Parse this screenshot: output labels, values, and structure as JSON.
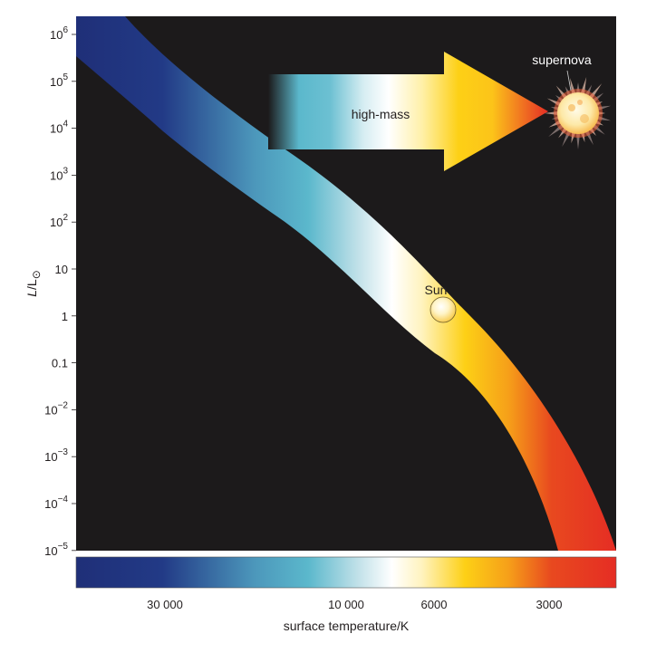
{
  "diagram": {
    "y_axis": {
      "label_italic": "L",
      "label_rest": "/L",
      "label_sub": "⊙",
      "ticks": [
        {
          "base": "10",
          "exp": "6"
        },
        {
          "base": "10",
          "exp": "5"
        },
        {
          "base": "10",
          "exp": "4"
        },
        {
          "base": "10",
          "exp": "3"
        },
        {
          "base": "10",
          "exp": "2"
        },
        {
          "base": "10",
          "exp": ""
        },
        {
          "base": "1",
          "exp": ""
        },
        {
          "base": "0.1",
          "exp": ""
        },
        {
          "base": "10",
          "exp": "−2"
        },
        {
          "base": "10",
          "exp": "−3"
        },
        {
          "base": "10",
          "exp": "−4"
        },
        {
          "base": "10",
          "exp": "−5"
        }
      ]
    },
    "x_axis": {
      "title": "surface temperature/K",
      "ticks": [
        "30 000",
        "10 000",
        "6000",
        "3000"
      ]
    },
    "labels": {
      "arrow": "high-mass",
      "sun": "Sun",
      "supernova": "supernova"
    },
    "colors": {
      "background": "#1c1a1b",
      "hot": "#1f2f78",
      "cyan": "#5bb8cc",
      "white": "#ffffff",
      "yellow": "#fdd016",
      "red": "#e52d24"
    }
  }
}
